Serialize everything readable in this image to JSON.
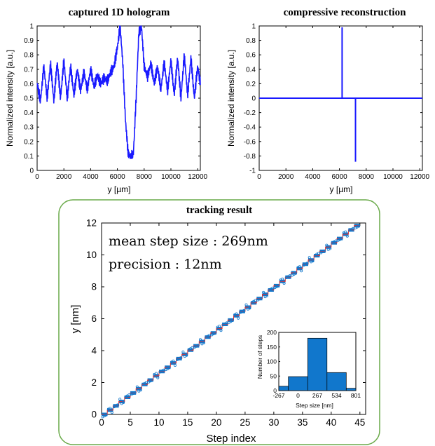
{
  "colors": {
    "line": "#1a1aff",
    "bar": "#1177cc",
    "stair": "#e03030",
    "frame": "#6aaa4a"
  },
  "chart_data": [
    {
      "type": "line",
      "title": "captured 1D hologram",
      "xlabel": "y [µm]",
      "ylabel": "Normalized intensity [a.u.]",
      "xlim": [
        0,
        12200
      ],
      "ylim": [
        0,
        1
      ],
      "xticks": [
        "0",
        "2000",
        "4000",
        "6000",
        "8000",
        "10000",
        "12000"
      ],
      "yticks": [
        "0",
        "0.1",
        "0.2",
        "0.3",
        "0.4",
        "0.5",
        "0.6",
        "0.7",
        "0.8",
        "0.9",
        "1"
      ],
      "x": [
        0,
        250,
        500,
        750,
        1000,
        1250,
        1500,
        1750,
        2000,
        2250,
        2500,
        2750,
        3000,
        3250,
        3500,
        3750,
        4000,
        4250,
        4500,
        4750,
        5000,
        5250,
        5500,
        5750,
        6000,
        6200,
        6400,
        6600,
        6800,
        7000,
        7200,
        7400,
        7600,
        7800,
        8000,
        8250,
        8500,
        8750,
        9000,
        9250,
        9500,
        9750,
        10000,
        10250,
        10500,
        10750,
        11000,
        11250,
        11500,
        11750,
        12000,
        12200
      ],
      "y": [
        0.6,
        0.48,
        0.72,
        0.5,
        0.74,
        0.48,
        0.75,
        0.5,
        0.76,
        0.5,
        0.72,
        0.52,
        0.7,
        0.55,
        0.68,
        0.56,
        0.7,
        0.58,
        0.66,
        0.6,
        0.64,
        0.62,
        0.68,
        0.72,
        0.85,
        1.0,
        0.75,
        0.35,
        0.12,
        0.09,
        0.12,
        0.5,
        0.95,
        1.0,
        0.72,
        0.65,
        0.74,
        0.6,
        0.72,
        0.56,
        0.75,
        0.55,
        0.76,
        0.52,
        0.78,
        0.5,
        0.8,
        0.52,
        0.78,
        0.5,
        0.72,
        0.6
      ]
    },
    {
      "type": "line",
      "title": "compressive reconstruction",
      "xlabel": "y [µm]",
      "ylabel": "Normalized intensity [a.u.]",
      "xlim": [
        0,
        12200
      ],
      "ylim": [
        -1,
        1
      ],
      "xticks": [
        "0",
        "2000",
        "4000",
        "6000",
        "8000",
        "10000",
        "12000"
      ],
      "yticks": [
        "-1",
        "-0.8",
        "-0.6",
        "-0.4",
        "-0.2",
        "0",
        "0.2",
        "0.4",
        "0.6",
        "0.8",
        "1"
      ],
      "spikes": [
        {
          "x": 6200,
          "y": 0.98
        },
        {
          "x": 7200,
          "y": -0.88
        }
      ]
    },
    {
      "type": "scatter",
      "title": "tracking result",
      "xlabel": "Step index",
      "ylabel": "y [nm]",
      "xlim": [
        0,
        46
      ],
      "ylim": [
        0,
        12
      ],
      "xticks": [
        "0",
        "5",
        "10",
        "15",
        "20",
        "25",
        "30",
        "35",
        "40",
        "45"
      ],
      "yticks": [
        "0",
        "2",
        "4",
        "6",
        "8",
        "10",
        "12"
      ],
      "annotations": [
        "mean step size : 269nm",
        "precision : 12nm"
      ],
      "steps": 45,
      "mean_step_nm": 269,
      "inset": {
        "type": "bar",
        "xlabel": "Step size [nm]",
        "ylabel": "Number of steps",
        "categories": [
          "-267",
          "0",
          "267",
          "534",
          "801"
        ],
        "bin_edges": [
          -267,
          -134,
          134,
          401,
          668,
          801
        ],
        "values": [
          15,
          48,
          180,
          62,
          8
        ],
        "ylim": [
          0,
          200
        ],
        "yticks": [
          "0",
          "50",
          "100",
          "150",
          "200"
        ]
      }
    }
  ]
}
